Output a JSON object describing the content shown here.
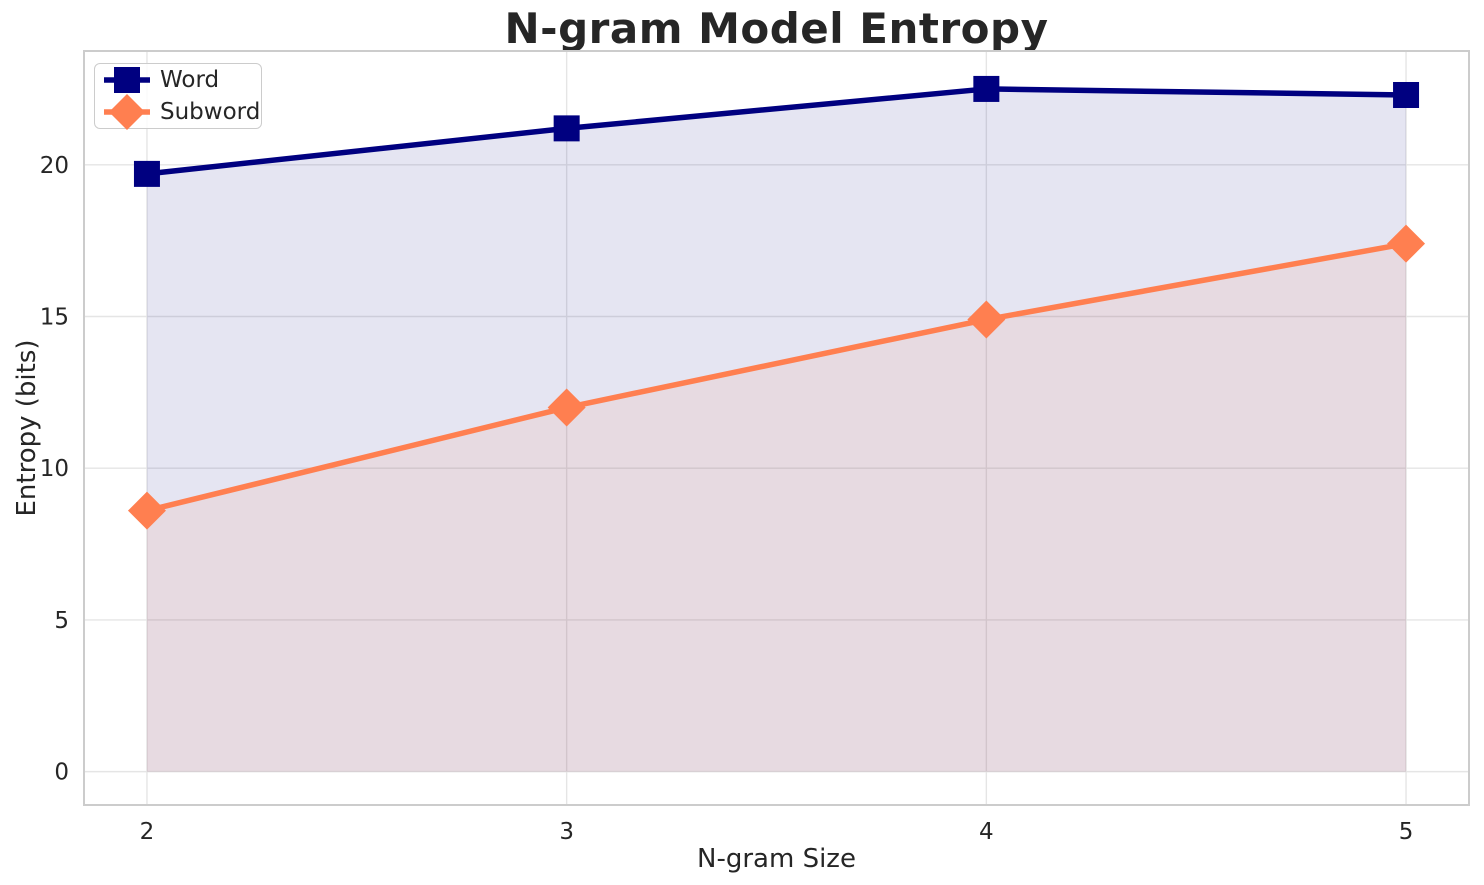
{
  "chart_data": {
    "type": "line",
    "title": "N-gram Model Entropy",
    "xlabel": "N-gram Size",
    "ylabel": "Entropy (bits)",
    "x": [
      2,
      3,
      4,
      5
    ],
    "series": [
      {
        "name": "Word",
        "values": [
          19.7,
          21.2,
          22.5,
          22.3
        ],
        "color": "#000080",
        "marker": "square",
        "fill": true
      },
      {
        "name": "Subword",
        "values": [
          8.6,
          12.0,
          14.9,
          17.4
        ],
        "color": "#FF7F50",
        "marker": "diamond",
        "fill": true
      }
    ],
    "xticks": [
      2,
      3,
      4,
      5
    ],
    "yticks": [
      0,
      5,
      10,
      15,
      20
    ],
    "xlim": [
      1.85,
      5.15
    ],
    "ylim": [
      -1.1,
      23.75
    ],
    "grid": true,
    "fill_alpha": 0.1,
    "fill_baseline": 0,
    "legend_position": "upper left"
  },
  "colors": {
    "background": "#ffffff",
    "grid": "#e5e5e5",
    "spine": "#cccccc",
    "text": "#262626"
  }
}
